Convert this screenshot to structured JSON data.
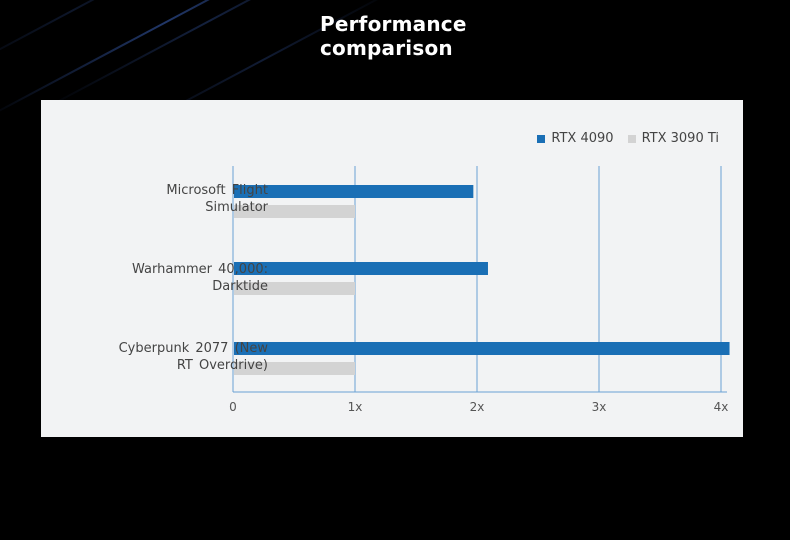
{
  "page": {
    "title_line1": "Performance",
    "title_line2": "comparison"
  },
  "colors": {
    "rtx4090": "#1a6fb5",
    "rtx3090ti": "#d3d3d3",
    "gridline": "#6aa2d4",
    "panel_bg": "#f2f3f4",
    "page_bg": "#000000"
  },
  "chart_data": {
    "type": "bar",
    "orientation": "horizontal",
    "categories": [
      [
        "Microsoft  Flight",
        "Simulator"
      ],
      [
        "Warhammer  40,000:",
        "Darktide"
      ],
      [
        "Cyberpunk  2077  (New",
        "RT Overdrive)"
      ]
    ],
    "series": [
      {
        "name": "RTX 4090",
        "values": [
          1.97,
          2.09,
          4.07
        ]
      },
      {
        "name": "RTX 3090 Ti",
        "values": [
          1.0,
          1.0,
          1.0
        ]
      }
    ],
    "x_ticks": [
      "0",
      "1x",
      "2x",
      "3x",
      "4x"
    ],
    "xlim": [
      0,
      4
    ],
    "grid": true,
    "legend_position": "top-right"
  }
}
